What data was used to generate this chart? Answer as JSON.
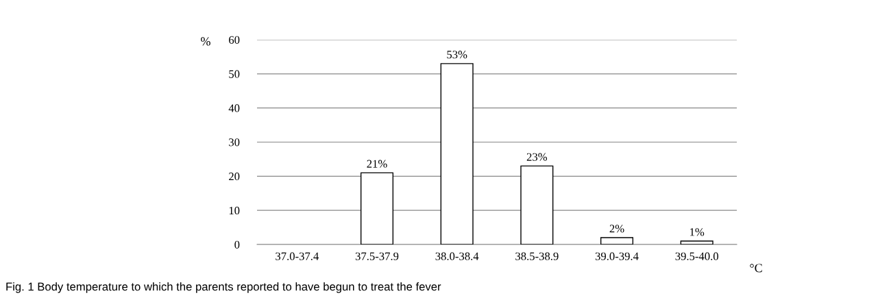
{
  "chart_data": {
    "type": "bar",
    "categories": [
      "37.0-37.4",
      "37.5-37.9",
      "38.0-38.4",
      "38.5-38.9",
      "39.0-39.4",
      "39.5-40.0"
    ],
    "values": [
      0,
      21,
      53,
      23,
      2,
      1
    ],
    "value_labels": [
      null,
      "21%",
      "53%",
      "23%",
      "2%",
      "1%"
    ],
    "color": "#ffffff",
    "ylabel": "%",
    "xlabel": "°C",
    "ylim": [
      0,
      60
    ],
    "yticks": [
      0,
      10,
      20,
      30,
      40,
      50,
      60
    ],
    "grid": "y",
    "annotations": [
      "Fig. 1 Body temperature to which the parents reported to have begun to treat the fever"
    ]
  }
}
